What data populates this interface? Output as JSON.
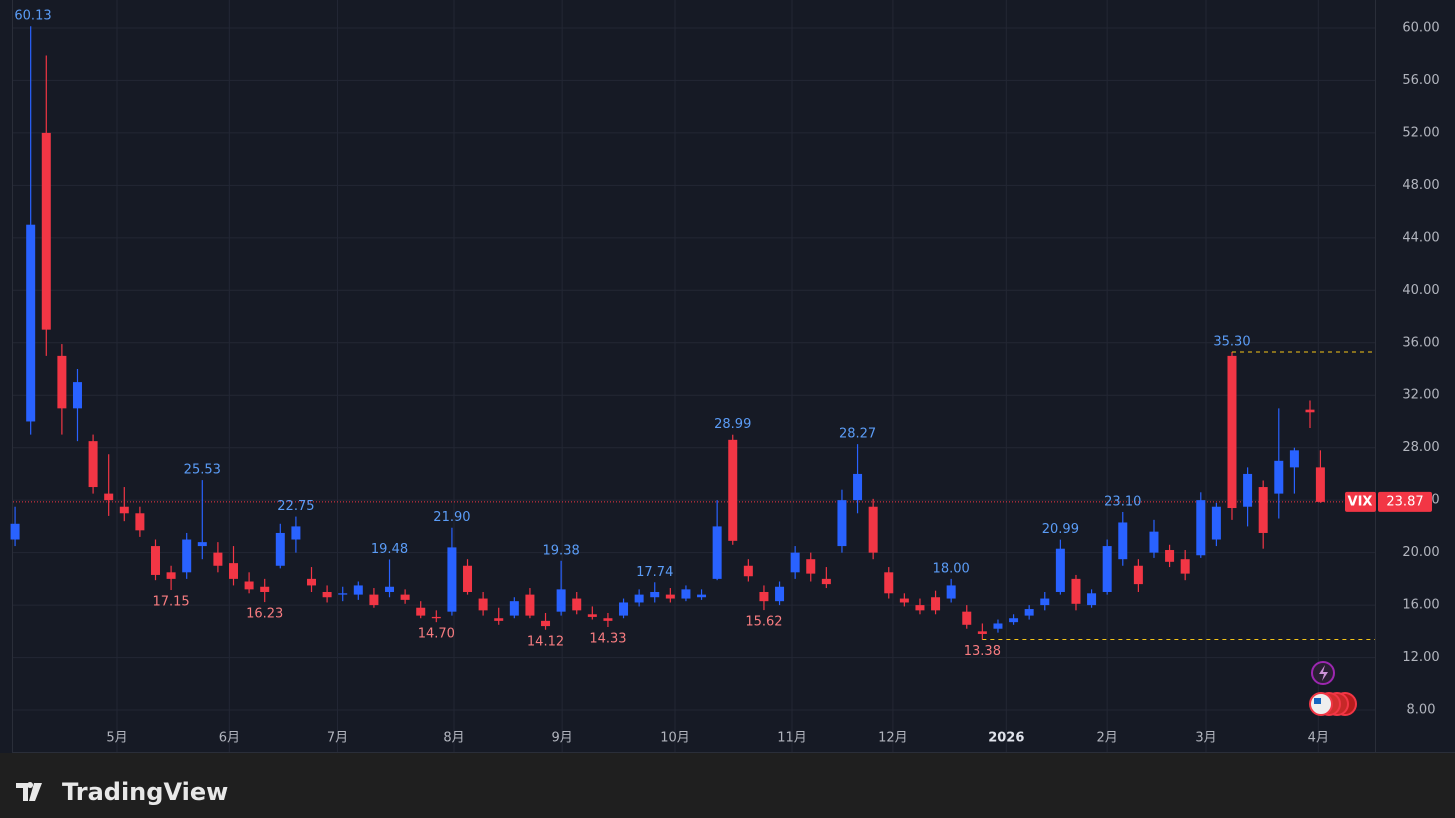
{
  "chart_data": {
    "type": "candlestick",
    "symbol": "VIX",
    "x": [
      0,
      3,
      6,
      9,
      12,
      15,
      18,
      21,
      24,
      27,
      30,
      33,
      36,
      39,
      42,
      45,
      48,
      51,
      54,
      57,
      60,
      63,
      66,
      69,
      72,
      75,
      78,
      81,
      84,
      87,
      90,
      93,
      96,
      99,
      102,
      105,
      108,
      111,
      114,
      117,
      120,
      123,
      126,
      129,
      132,
      135,
      138,
      141,
      144,
      147,
      150,
      153,
      156,
      159,
      162,
      165,
      168,
      171,
      174,
      177,
      180,
      183,
      186,
      189,
      192,
      195,
      198,
      201,
      204,
      207,
      210,
      213,
      216,
      219,
      222,
      225,
      228,
      231,
      234,
      237,
      240,
      243,
      246,
      249,
      251
    ],
    "open": [
      21,
      30,
      52,
      35,
      31,
      28.5,
      24.5,
      23.5,
      23,
      20.5,
      18.5,
      18.5,
      20.5,
      20,
      19.2,
      17.8,
      17.4,
      19,
      21,
      18,
      17,
      16.8,
      16.8,
      16.8,
      17,
      16.8,
      15.8,
      15.1,
      15.5,
      19,
      16.5,
      15,
      15.2,
      16.8,
      14.8,
      15.5,
      16.5,
      15.3,
      15,
      15.2,
      16.2,
      16.6,
      16.8,
      16.5,
      16.6,
      18,
      28.6,
      19,
      17,
      16.3,
      18.5,
      19.5,
      18,
      20.5,
      24,
      23.5,
      18.5,
      16.5,
      16,
      16.6,
      16.5,
      15.5,
      14,
      14.2,
      14.7,
      15.2,
      16,
      17,
      18,
      16,
      17,
      19.5,
      19,
      20,
      20.2,
      19.5,
      19.8,
      21,
      35,
      23.5,
      25,
      24.5,
      26.5,
      30.9,
      26.5
    ],
    "high": [
      23.5,
      60.13,
      57.9,
      35.9,
      34,
      29,
      27.5,
      25,
      23.5,
      21,
      19,
      21.5,
      25.53,
      20.8,
      20.5,
      18.5,
      18,
      22.2,
      22.75,
      18.9,
      17.5,
      17.4,
      17.8,
      17.3,
      19.48,
      17.2,
      16.3,
      15.6,
      21.9,
      19.5,
      17,
      15.8,
      16.6,
      17.3,
      15.4,
      19.38,
      17,
      15.9,
      15.4,
      16.5,
      17.2,
      17.74,
      17.3,
      17.5,
      17.2,
      24,
      28.99,
      19.5,
      17.5,
      17.8,
      20.5,
      20,
      18.9,
      24.8,
      28.27,
      24.1,
      18.9,
      16.9,
      16.5,
      17.1,
      18,
      16,
      14.6,
      14.9,
      15.3,
      16,
      17,
      20.99,
      18.3,
      17.2,
      21,
      23.1,
      19.5,
      22.5,
      20.6,
      20.2,
      24.6,
      23.8,
      35.3,
      26.5,
      25.5,
      31,
      28,
      31.6,
      27.8
    ],
    "low": [
      20.5,
      29,
      35,
      29,
      28.5,
      24.5,
      22.8,
      22.4,
      21.2,
      17.9,
      17.15,
      18,
      19.5,
      18.5,
      17.5,
      16.9,
      16.23,
      18.8,
      20,
      17,
      16.2,
      16.3,
      16.4,
      15.8,
      16.6,
      16.1,
      15,
      14.7,
      15.2,
      16.8,
      15.2,
      14.5,
      15,
      15,
      14.12,
      15.2,
      15.3,
      14.9,
      14.33,
      15,
      15.9,
      16.2,
      16.2,
      16.3,
      16.4,
      17.9,
      20.6,
      17.8,
      15.62,
      16,
      18,
      17.8,
      17.3,
      20,
      23,
      19.5,
      16.5,
      15.9,
      15.3,
      15.3,
      16.2,
      14.2,
      13.38,
      13.9,
      14.5,
      14.9,
      15.6,
      16.8,
      15.6,
      15.8,
      16.8,
      19,
      17,
      19.6,
      18.9,
      17.9,
      19.6,
      20.5,
      22.5,
      22,
      20.3,
      22.6,
      24.5,
      29.5,
      23.8
    ],
    "close": [
      22.2,
      45,
      37,
      31,
      33,
      25,
      24,
      23,
      21.7,
      18.3,
      18,
      21,
      20.8,
      19,
      18,
      17.2,
      17,
      21.5,
      22,
      17.5,
      16.6,
      16.9,
      17.5,
      16,
      17.4,
      16.4,
      15.2,
      15,
      20.4,
      17,
      15.6,
      14.8,
      16.3,
      15.2,
      14.4,
      17.2,
      15.6,
      15.1,
      14.8,
      16.2,
      16.8,
      17,
      16.5,
      17.2,
      16.8,
      22,
      20.9,
      18.2,
      16.3,
      17.4,
      20,
      18.4,
      17.6,
      24,
      26,
      20,
      16.9,
      16.2,
      15.6,
      15.6,
      17.5,
      14.5,
      13.8,
      14.6,
      15,
      15.7,
      16.5,
      20.3,
      16.1,
      16.9,
      20.5,
      22.3,
      17.6,
      21.6,
      19.3,
      18.4,
      24,
      23.5,
      23.4,
      26,
      21.5,
      27,
      27.8,
      30.7,
      23.87
    ],
    "up_color": "#2962ff",
    "down_color": "#f23645",
    "xlim": [
      -0.4,
      261.5
    ],
    "xticks": [
      {
        "value": 19.6,
        "label": "5月"
      },
      {
        "value": 41.2,
        "label": "6月"
      },
      {
        "value": 62,
        "label": "7月"
      },
      {
        "value": 84.4,
        "label": "8月"
      },
      {
        "value": 105.2,
        "label": "9月"
      },
      {
        "value": 126.9,
        "label": "10月"
      },
      {
        "value": 149.4,
        "label": "11月"
      },
      {
        "value": 168.8,
        "label": "12月"
      },
      {
        "value": 190.6,
        "label": "2026",
        "bold": true
      },
      {
        "value": 210,
        "label": "2月"
      },
      {
        "value": 229,
        "label": "3月"
      },
      {
        "value": 250.6,
        "label": "4月"
      }
    ],
    "ylim": [
      6.86,
      62.13
    ],
    "yticks": [
      {
        "value": 8,
        "label": "8.00"
      },
      {
        "value": 12,
        "label": "12.00"
      },
      {
        "value": 16,
        "label": "16.00"
      },
      {
        "value": 20,
        "label": "20.00"
      },
      {
        "value": 24,
        "label": "24.00"
      },
      {
        "value": 28,
        "label": "28.00"
      },
      {
        "value": 32,
        "label": "32.00"
      },
      {
        "value": 36,
        "label": "36.00"
      },
      {
        "value": 40,
        "label": "40.00"
      },
      {
        "value": 44,
        "label": "44.00"
      },
      {
        "value": 48,
        "label": "48.00"
      },
      {
        "value": 52,
        "label": "52.00"
      },
      {
        "value": 56,
        "label": "56.00"
      },
      {
        "value": 60,
        "label": "60.00"
      }
    ],
    "grid": true,
    "last_price": {
      "value": 23.87,
      "label": "23.87"
    },
    "extremes": [
      {
        "x": 3,
        "value": 60.13,
        "label": "60.13",
        "kind": "high"
      },
      {
        "x": 30,
        "value": 17.15,
        "label": "17.15",
        "kind": "low"
      },
      {
        "x": 36,
        "value": 25.53,
        "label": "25.53",
        "kind": "high"
      },
      {
        "x": 48,
        "value": 16.23,
        "label": "16.23",
        "kind": "low"
      },
      {
        "x": 54,
        "value": 22.75,
        "label": "22.75",
        "kind": "high"
      },
      {
        "x": 72,
        "value": 19.48,
        "label": "19.48",
        "kind": "high"
      },
      {
        "x": 81,
        "value": 14.7,
        "label": "14.70",
        "kind": "low"
      },
      {
        "x": 84,
        "value": 21.9,
        "label": "21.90",
        "kind": "high"
      },
      {
        "x": 102,
        "value": 14.12,
        "label": "14.12",
        "kind": "low"
      },
      {
        "x": 105,
        "value": 19.38,
        "label": "19.38",
        "kind": "high"
      },
      {
        "x": 114,
        "value": 14.33,
        "label": "14.33",
        "kind": "low"
      },
      {
        "x": 123,
        "value": 17.74,
        "label": "17.74",
        "kind": "high"
      },
      {
        "x": 138,
        "value": 28.99,
        "label": "28.99",
        "kind": "high"
      },
      {
        "x": 144,
        "value": 15.62,
        "label": "15.62",
        "kind": "low"
      },
      {
        "x": 162,
        "value": 28.27,
        "label": "28.27",
        "kind": "high"
      },
      {
        "x": 180,
        "value": 18,
        "label": "18.00",
        "kind": "high"
      },
      {
        "x": 186,
        "value": 13.38,
        "label": "13.38",
        "kind": "low",
        "dashed": true
      },
      {
        "x": 201,
        "value": 20.99,
        "label": "20.99",
        "kind": "high"
      },
      {
        "x": 213,
        "value": 23.1,
        "label": "23.10",
        "kind": "high"
      },
      {
        "x": 234,
        "value": 35.3,
        "label": "35.30",
        "kind": "high",
        "dashed": true
      }
    ]
  },
  "branding": {
    "logo_text": "TradingView"
  }
}
